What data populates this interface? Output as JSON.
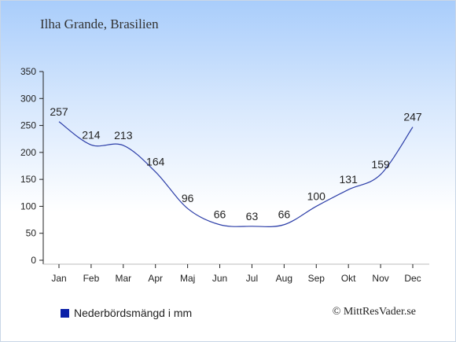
{
  "header": {
    "location": "Ilha Grande, Brasilien"
  },
  "legend": {
    "label": "Nederbördsmängd i mm",
    "color": "#0a1fa8"
  },
  "footer": {
    "copyright": "© MittResVader.se"
  },
  "chart_data": {
    "type": "line",
    "title": "",
    "xlabel": "",
    "ylabel": "",
    "categories": [
      "Jan",
      "Feb",
      "Mar",
      "Apr",
      "Maj",
      "Jun",
      "Jul",
      "Aug",
      "Sep",
      "Okt",
      "Nov",
      "Dec"
    ],
    "series": [
      {
        "name": "Nederbördsmängd i mm",
        "values": [
          257,
          214,
          213,
          164,
          96,
          66,
          63,
          66,
          100,
          131,
          159,
          247
        ],
        "color": "#2c3ea8"
      }
    ],
    "ylim": [
      0,
      350
    ],
    "yticks": [
      0,
      50,
      100,
      150,
      200,
      250,
      300,
      350
    ],
    "grid": false,
    "legend_position": "bottom-left"
  }
}
